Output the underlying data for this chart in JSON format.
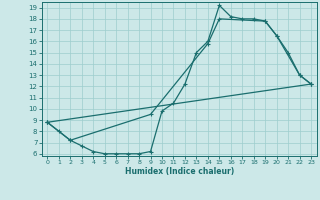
{
  "xlabel": "Humidex (Indice chaleur)",
  "bg_color": "#cce8e8",
  "line_color": "#1a6e6e",
  "grid_color": "#9ecece",
  "xlim": [
    -0.5,
    23.5
  ],
  "ylim": [
    5.8,
    19.5
  ],
  "xticks": [
    0,
    1,
    2,
    3,
    4,
    5,
    6,
    7,
    8,
    9,
    10,
    11,
    12,
    13,
    14,
    15,
    16,
    17,
    18,
    19,
    20,
    21,
    22,
    23
  ],
  "yticks": [
    6,
    7,
    8,
    9,
    10,
    11,
    12,
    13,
    14,
    15,
    16,
    17,
    18,
    19
  ],
  "curve1_x": [
    0,
    1,
    2,
    3,
    4,
    5,
    6,
    7,
    8,
    9,
    10,
    11,
    12,
    13,
    14,
    15,
    16,
    17,
    18,
    19,
    20,
    21,
    22,
    23
  ],
  "curve1_y": [
    8.8,
    8.0,
    7.2,
    6.7,
    6.2,
    6.0,
    6.0,
    6.0,
    6.0,
    6.2,
    9.8,
    10.5,
    12.2,
    15.0,
    16.0,
    19.2,
    18.2,
    18.0,
    18.0,
    17.8,
    16.5,
    15.0,
    13.0,
    12.2
  ],
  "curve2_x": [
    0,
    2,
    9,
    14,
    15,
    19,
    20,
    22,
    23
  ],
  "curve2_y": [
    8.8,
    7.2,
    9.5,
    15.8,
    18.0,
    17.8,
    16.5,
    13.0,
    12.2
  ],
  "curve3_x": [
    0,
    23
  ],
  "curve3_y": [
    8.8,
    12.2
  ]
}
